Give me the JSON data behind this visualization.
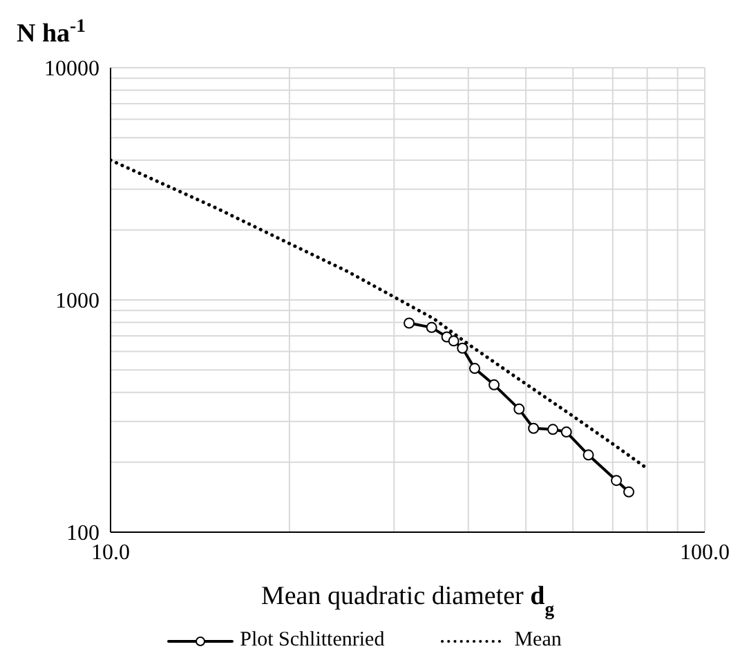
{
  "chart_data": {
    "type": "line",
    "xlabel": "Mean quadratic diameter d$_{g}$",
    "ylabel": "N ha$^{-1}$",
    "log": "xy",
    "grid": true,
    "legend": "bottom",
    "xlim": [
      10,
      100
    ],
    "xticks": [
      {
        "value": 10,
        "label": "10.0"
      },
      {
        "value": 20,
        "label": null
      },
      {
        "value": 30,
        "label": null
      },
      {
        "value": 40,
        "label": null
      },
      {
        "value": 50,
        "label": null
      },
      {
        "value": 60,
        "label": null
      },
      {
        "value": 70,
        "label": null
      },
      {
        "value": 80,
        "label": null
      },
      {
        "value": 90,
        "label": null
      },
      {
        "value": 100,
        "label": "100.0"
      }
    ],
    "ylim": [
      100,
      10000
    ],
    "yticks": [
      100,
      {
        "value": 200,
        "label": null
      },
      {
        "value": 300,
        "label": null
      },
      {
        "value": 400,
        "label": null
      },
      {
        "value": 500,
        "label": null
      },
      {
        "value": 600,
        "label": null
      },
      {
        "value": 700,
        "label": null
      },
      {
        "value": 800,
        "label": null
      },
      {
        "value": 900,
        "label": null
      },
      1000,
      {
        "value": 2000,
        "label": null
      },
      {
        "value": 3000,
        "label": null
      },
      {
        "value": 4000,
        "label": null
      },
      {
        "value": 5000,
        "label": null
      },
      {
        "value": 6000,
        "label": null
      },
      {
        "value": 7000,
        "label": null
      },
      {
        "value": 8000,
        "label": null
      },
      {
        "value": 9000,
        "label": null
      },
      10000
    ],
    "series": [
      {
        "name": "Plot Schlittenried",
        "color": "#000000",
        "marker": "circle",
        "line_style": "solid",
        "x": [
          31.8,
          34.7,
          36.8,
          37.8,
          39.1,
          41.0,
          44.2,
          48.7,
          51.5,
          55.5,
          58.5,
          63.7,
          71.0,
          74.5
        ],
        "values": [
          795,
          761,
          693,
          666,
          620,
          507,
          431,
          339,
          280,
          277,
          270,
          215,
          167,
          149
        ]
      },
      {
        "name": "Mean",
        "color": "#000000",
        "marker": "none",
        "line_style": "dotted",
        "x": [
          10,
          15,
          20,
          25,
          30,
          35,
          40,
          48,
          60,
          70,
          80
        ],
        "values": [
          4000,
          2500,
          1750,
          1330,
          1030,
          830,
          645,
          467,
          316,
          240,
          188
        ]
      }
    ]
  }
}
